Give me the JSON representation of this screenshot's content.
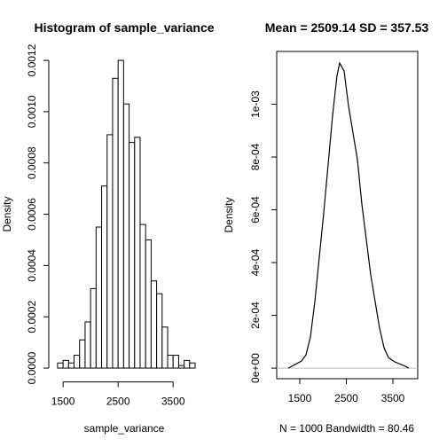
{
  "chart_data": [
    {
      "type": "histogram",
      "title": "Histogram of sample_variance",
      "x_label": "sample_variance",
      "y_label": "Density",
      "bins": [
        1400,
        1500,
        1600,
        1700,
        1800,
        1900,
        2000,
        2100,
        2200,
        2300,
        2400,
        2500,
        2600,
        2700,
        2800,
        2900,
        3000,
        3100,
        3200,
        3300,
        3400,
        3500,
        3600,
        3700,
        3800,
        3900
      ],
      "values": [
        2e-05,
        3e-05,
        2e-05,
        5e-05,
        0.00011,
        0.00018,
        0.00031,
        0.00055,
        0.00071,
        0.00091,
        0.00113,
        0.0012,
        0.00103,
        0.00088,
        0.0009,
        0.00056,
        0.0005,
        0.00034,
        0.00029,
        0.00016,
        5e-05,
        5e-05,
        1e-05,
        3e-05,
        2e-05
      ],
      "color": "#ffffff",
      "xlim": [
        1240,
        3980
      ],
      "xticks": [
        1500,
        2500,
        3500
      ],
      "ylim": [
        -4e-05,
        0.00124
      ],
      "yticks": [
        {
          "value": 0,
          "label": "0.0000"
        },
        {
          "value": 0.0002,
          "label": "0.0002"
        },
        {
          "value": 0.0004,
          "label": "0.0004"
        },
        {
          "value": 0.0006,
          "label": "0.0006"
        },
        {
          "value": 0.0008,
          "label": "0.0008"
        },
        {
          "value": 0.001,
          "label": "0.0010"
        },
        {
          "value": 0.0012,
          "label": "0.0012"
        }
      ]
    },
    {
      "type": "line",
      "title": "Mean =  2509.14 SD =  357.53",
      "x_label": "N = 1000   Bandwidth = 80.46",
      "y_label": "Density",
      "x": [
        1252,
        1538,
        1633,
        1729,
        1824,
        1919,
        2014,
        2110,
        2205,
        2300,
        2357,
        2452,
        2548,
        2643,
        2738,
        2833,
        2929,
        3024,
        3119,
        3214,
        3310,
        3405,
        3538,
        3729,
        3843
      ],
      "values": [
        0,
        2.7e-05,
        5e-05,
        0.000118,
        0.000252,
        0.00042,
        0.000588,
        0.000773,
        0.000958,
        0.001109,
        0.001156,
        0.001126,
        0.000992,
        0.000891,
        0.00079,
        0.000622,
        0.000487,
        0.000353,
        0.000252,
        0.000151,
        7.7e-05,
        4e-05,
        2.4e-05,
        1e-05,
        0
      ],
      "color": "#000000",
      "xlim": [
        1005,
        4033
      ],
      "xticks": [
        1500,
        2500,
        3500
      ],
      "ylim": [
        -4e-05,
        0.0012
      ],
      "yticks": [
        {
          "value": 0,
          "label": "0e+00"
        },
        {
          "value": 0.0002,
          "label": "2e-04"
        },
        {
          "value": 0.0004,
          "label": "4e-04"
        },
        {
          "value": 0.0006,
          "label": "6e-04"
        },
        {
          "value": 0.0008,
          "label": "8e-04"
        },
        {
          "value": 0.001,
          "label": "1e-03"
        }
      ]
    }
  ]
}
